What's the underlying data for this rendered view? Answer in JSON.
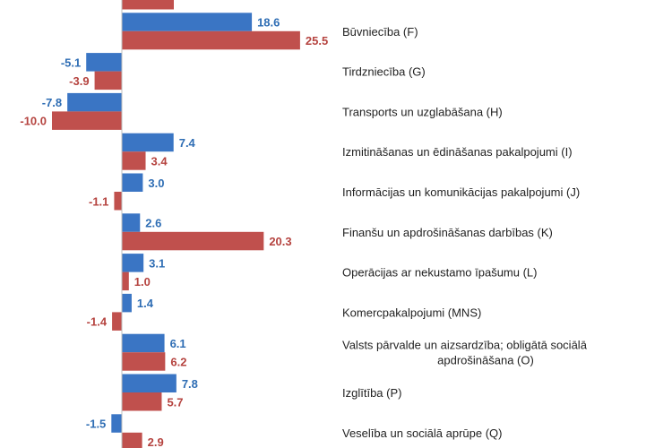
{
  "chart_data": {
    "type": "bar",
    "orientation": "horizontal",
    "grid": false,
    "categories": [
      "",
      "Būvniecība (F)",
      "Tirdzniecība (G)",
      "Transports un uzglabāšana (H)",
      "Izmitināšanas un ēdināšanas pakalpojumi (I)",
      "Informācijas un komunikācijas pakalpojumi (J)",
      "Finanšu un apdrošināšanas darbības (K)",
      "Operācijas ar nekustamo īpašumu (L)",
      "Komercpakalpojumi (MNS)",
      "Valsts pārvalde un aizsardzība; obligātā sociālā apdrošināšana (O)",
      "Izglītība (P)",
      "Veselība un sociālā aprūpe (Q)"
    ],
    "category_lines": [
      [
        ""
      ],
      [
        "Būvniecība (F)"
      ],
      [
        "Tirdzniecība (G)"
      ],
      [
        "Transports un uzglabāšana (H)"
      ],
      [
        "Izmitināšanas un ēdināšanas pakalpojumi (I)"
      ],
      [
        "Informācijas un komunikācijas pakalpojumi (J)"
      ],
      [
        "Finanšu un apdrošināšanas darbības (K)"
      ],
      [
        "Operācijas ar nekustamo īpašumu (L)"
      ],
      [
        "Komercpakalpojumi (MNS)"
      ],
      [
        "Valsts pārvalde un aizsardzība; obligātā sociālā",
        "apdrošināšana (O)"
      ],
      [
        "Izglītība (P)"
      ],
      [
        "Veselība un sociālā aprūpe (Q)"
      ]
    ],
    "series": [
      {
        "color": "#3a75c4",
        "values": [
          null,
          18.6,
          -5.1,
          -7.8,
          7.4,
          3.0,
          2.6,
          3.1,
          1.4,
          6.1,
          7.8,
          -1.5
        ],
        "labels": [
          "",
          "18.6",
          "-5.1",
          "-7.8",
          "7.4",
          "3.0",
          "2.6",
          "3.1",
          "1.4",
          "6.1",
          "7.8",
          "-1.5"
        ]
      },
      {
        "color": "#c0504d",
        "values": [
          null,
          25.5,
          -3.9,
          -10.0,
          3.4,
          -1.1,
          20.3,
          1.0,
          -1.4,
          6.2,
          5.7,
          2.9
        ],
        "labels": [
          "",
          "25.5",
          "-3.9",
          "-10.0",
          "3.4",
          "-1.1",
          "20.3",
          "1.0",
          "-1.4",
          "6.2",
          "5.7",
          "2.9"
        ]
      }
    ]
  }
}
